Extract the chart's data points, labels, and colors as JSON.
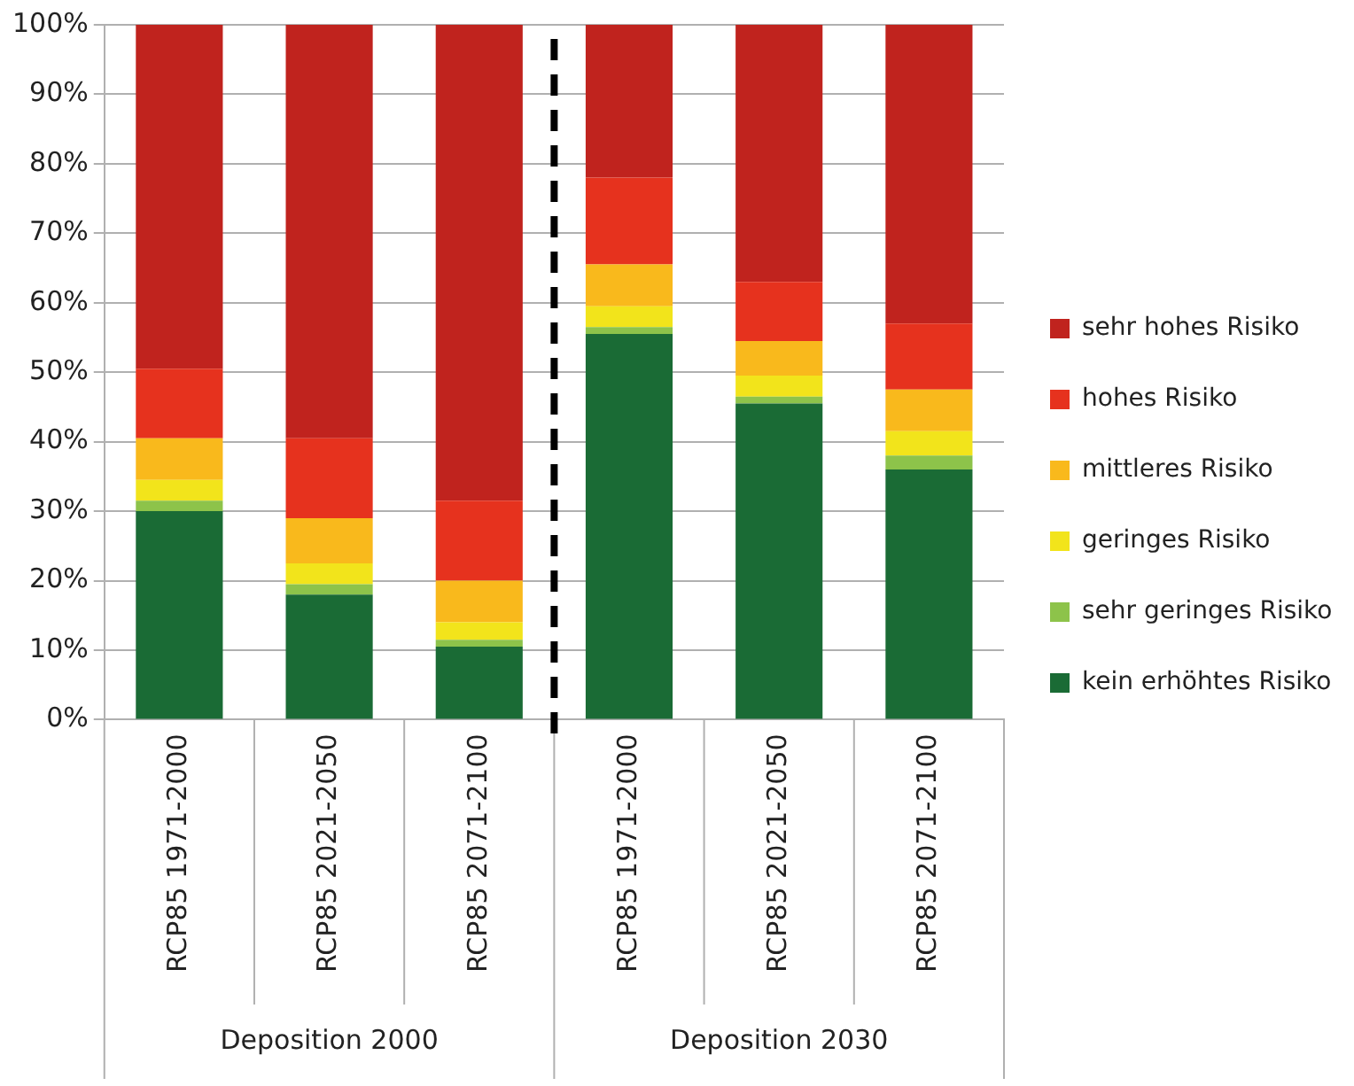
{
  "chart_data": {
    "type": "bar",
    "stacked": true,
    "categories": [
      "RCP85 1971-2000",
      "RCP85 2021-2050",
      "RCP85 2071-2100",
      "RCP85 1971-2000",
      "RCP85 2021-2050",
      "RCP85 2071-2100"
    ],
    "series": [
      {
        "name": "kein erhöhtes Risiko",
        "color": "#1a6b35",
        "values": [
          30,
          18,
          10.5,
          55.5,
          45.5,
          36
        ]
      },
      {
        "name": "sehr geringes Risiko",
        "color": "#8dc34a",
        "values": [
          1.5,
          1.5,
          1,
          1,
          1,
          2
        ]
      },
      {
        "name": "geringes Risiko",
        "color": "#f2e41b",
        "values": [
          3,
          3,
          2.5,
          3,
          3,
          3.5
        ]
      },
      {
        "name": "mittleres Risiko",
        "color": "#f9b91c",
        "values": [
          6,
          6.5,
          6,
          6,
          5,
          6
        ]
      },
      {
        "name": "hohes Risiko",
        "color": "#e6321e",
        "values": [
          10,
          11.5,
          11.5,
          12.5,
          8.5,
          9.5
        ]
      },
      {
        "name": "sehr hohes Risiko",
        "color": "#c0231e",
        "values": [
          49.5,
          59.5,
          68.5,
          22,
          37,
          43
        ]
      }
    ],
    "ylim": [
      0,
      100
    ],
    "yticks": [
      {
        "value": 0,
        "label": "0%"
      },
      {
        "value": 10,
        "label": "10%"
      },
      {
        "value": 20,
        "label": "20%"
      },
      {
        "value": 30,
        "label": "30%"
      },
      {
        "value": 40,
        "label": "40%"
      },
      {
        "value": 50,
        "label": "50%"
      },
      {
        "value": 60,
        "label": "60%"
      },
      {
        "value": 70,
        "label": "70%"
      },
      {
        "value": 80,
        "label": "80%"
      },
      {
        "value": 90,
        "label": "90%"
      },
      {
        "value": 100,
        "label": "100%"
      }
    ],
    "grid": "y",
    "legend": "right",
    "annotations": [
      "Deposition 2000",
      "Deposition 2030"
    ]
  }
}
